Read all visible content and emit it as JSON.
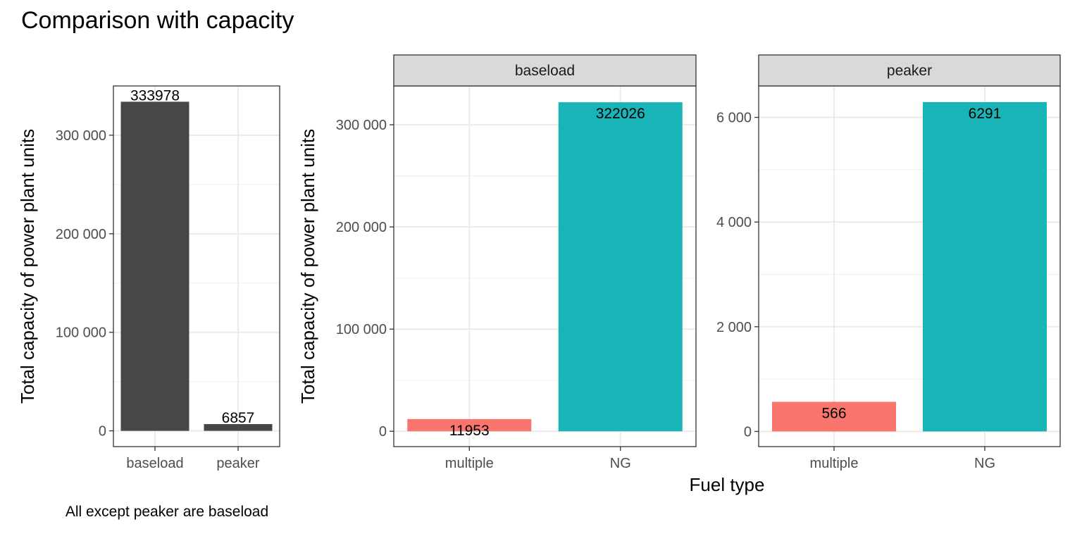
{
  "title": "Comparison with capacity",
  "caption": "All except peaker are baseload",
  "chart_data": [
    {
      "type": "bar",
      "title": "",
      "xlabel": "",
      "ylabel": "Total capacity of power plant units",
      "categories": [
        "baseload",
        "peaker"
      ],
      "values": [
        333978,
        6857
      ],
      "data_labels": [
        "333978",
        "6857"
      ],
      "ylim": [
        -16000,
        350000
      ],
      "yticks": [
        0,
        100000,
        200000,
        300000
      ],
      "ytick_labels": [
        "0",
        "100 000",
        "200 000",
        "300 000"
      ],
      "colors": [
        "#474747",
        "#474747"
      ],
      "grid": true
    },
    {
      "type": "bar",
      "facet": "baseload",
      "xlabel": "Fuel type",
      "ylabel": "Total capacity of power plant units",
      "categories": [
        "multiple",
        "NG"
      ],
      "values": [
        11953,
        322026
      ],
      "data_labels": [
        "11953",
        "322026"
      ],
      "ylim": [
        -15000,
        338000
      ],
      "yticks": [
        0,
        100000,
        200000,
        300000
      ],
      "ytick_labels": [
        "0",
        "100 000",
        "200 000",
        "300 000"
      ],
      "colors": [
        "#F8766D",
        "#19B4B8"
      ],
      "grid": true
    },
    {
      "type": "bar",
      "facet": "peaker",
      "xlabel": "Fuel type",
      "ylabel": "Total capacity of power plant units",
      "categories": [
        "multiple",
        "NG"
      ],
      "values": [
        566,
        6291
      ],
      "data_labels": [
        "566",
        "6291"
      ],
      "ylim": [
        -290,
        6600
      ],
      "yticks": [
        0,
        2000,
        4000,
        6000
      ],
      "ytick_labels": [
        "0",
        "2 000",
        "4 000",
        "6 000"
      ],
      "colors": [
        "#F8766D",
        "#19B4B8"
      ],
      "grid": true
    }
  ]
}
